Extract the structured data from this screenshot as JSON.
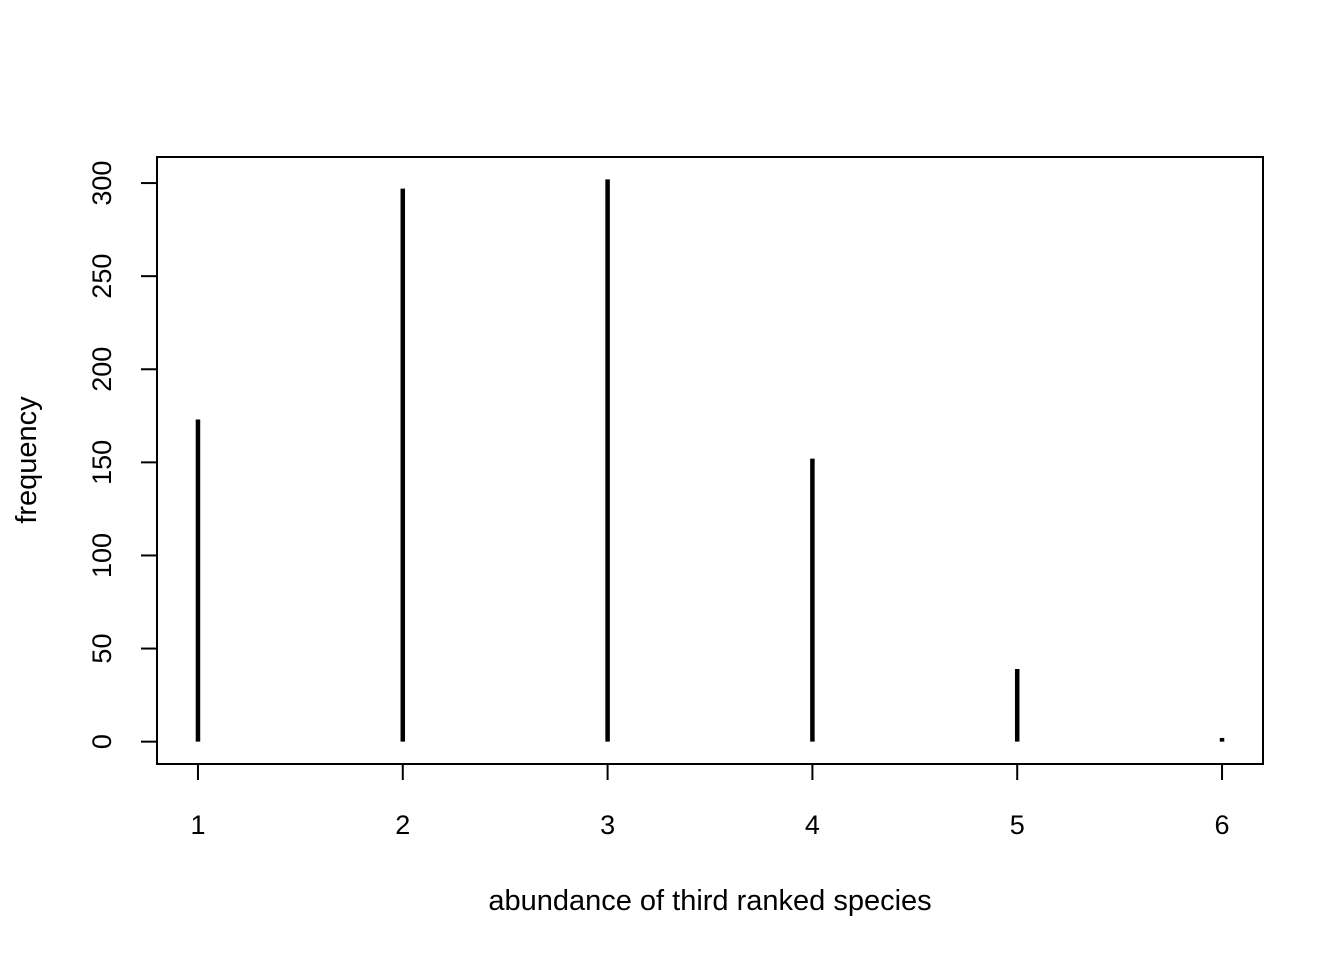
{
  "chart_data": {
    "type": "bar",
    "style": "histogram-spikes",
    "title": "",
    "xlabel": "abundance of third ranked species",
    "ylabel": "frequency",
    "categories": [
      "1",
      "2",
      "3",
      "4",
      "5",
      "6"
    ],
    "x": [
      1,
      2,
      3,
      4,
      5,
      6
    ],
    "values": [
      173,
      297,
      302,
      152,
      39,
      2
    ],
    "xlim": [
      0.8,
      6.2
    ],
    "ylim": [
      -12,
      314
    ],
    "x_ticks": [
      1,
      2,
      3,
      4,
      5,
      6
    ],
    "y_ticks": [
      0,
      50,
      100,
      150,
      200,
      250,
      300
    ],
    "grid": false,
    "legend": "none",
    "colors": {
      "line": "#000000",
      "background": "#ffffff"
    }
  }
}
